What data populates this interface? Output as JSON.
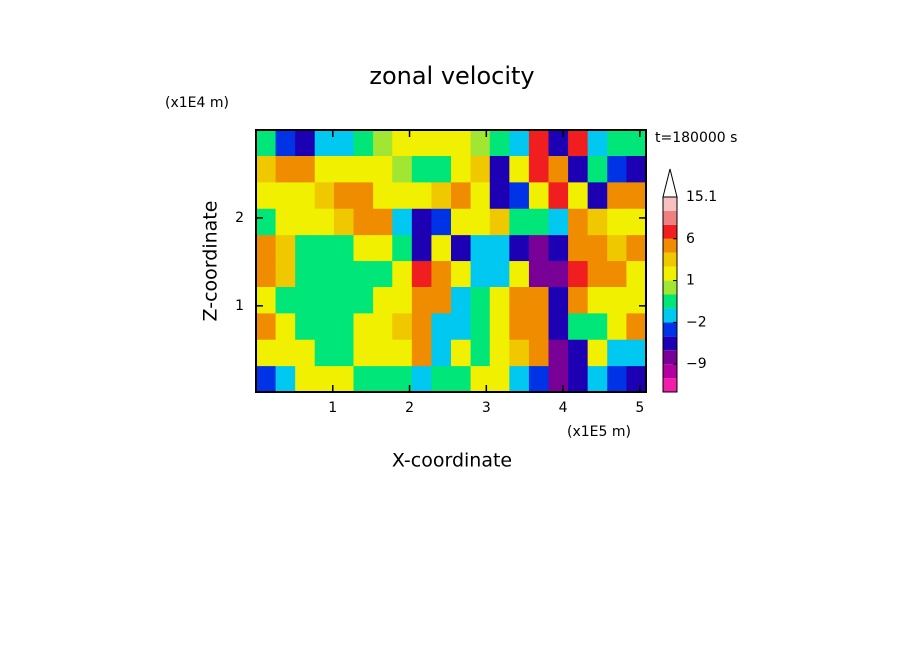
{
  "chart_data": {
    "type": "contour",
    "title": "zonal velocity",
    "x_label": "X-coordinate",
    "y_label": "Z-coordinate",
    "x_unit": "(x1E5 m)",
    "y_unit": "(x1E4 m)",
    "annotation": "t=180000 s",
    "xlim": [
      0,
      5.08
    ],
    "ylim": [
      0.02,
      3.0
    ],
    "xticks": [
      1,
      2,
      3,
      4,
      5
    ],
    "yticks": [
      1,
      2
    ],
    "x": [
      0.13,
      0.38,
      0.64,
      0.89,
      1.14,
      1.4,
      1.65,
      1.9,
      2.16,
      2.41,
      2.67,
      2.92,
      3.17,
      3.43,
      3.68,
      3.94,
      4.19,
      4.45,
      4.7,
      4.95
    ],
    "y": [
      0.17,
      0.47,
      0.77,
      1.07,
      1.37,
      1.66,
      1.96,
      2.26,
      2.56,
      2.86
    ],
    "z": [
      [
        -2.5,
        -1.5,
        1.5,
        1.5,
        1.5,
        -0.5,
        -0.5,
        -0.5,
        -1.5,
        -0.5,
        -0.5,
        1.5,
        1.5,
        -1.5,
        -2.5,
        -7.5,
        -4.5,
        -1.5,
        -2.5,
        -4.5
      ],
      [
        1.5,
        1.5,
        1.5,
        -0.5,
        -0.5,
        1.5,
        1.5,
        1.5,
        4.5,
        -1.5,
        1.5,
        -0.5,
        1.5,
        2.5,
        4.5,
        -7.5,
        -4.5,
        1.5,
        -1.5,
        -1.5
      ],
      [
        4.5,
        1.5,
        -0.5,
        -0.5,
        -0.5,
        1.5,
        1.5,
        2.5,
        4.5,
        -1.5,
        -1.5,
        -0.5,
        1.5,
        4.5,
        4.5,
        -4.5,
        -0.5,
        -0.5,
        1.5,
        4.5
      ],
      [
        1.5,
        -0.5,
        -0.5,
        -0.5,
        -0.5,
        -0.5,
        1.5,
        1.5,
        4.5,
        4.5,
        -1.5,
        -0.5,
        1.5,
        4.5,
        4.5,
        -4.5,
        4.5,
        1.5,
        1.5,
        1.5
      ],
      [
        4.5,
        2.5,
        -0.5,
        -0.5,
        -0.5,
        -0.5,
        -0.5,
        1.5,
        7,
        4.5,
        1.5,
        -1.5,
        -1.5,
        1.5,
        -7.5,
        -7.5,
        7,
        4.5,
        4.5,
        1.5
      ],
      [
        4.5,
        2.5,
        -0.5,
        -0.5,
        -0.5,
        1.5,
        1.5,
        -0.5,
        -4.5,
        1.5,
        -4.5,
        -1.5,
        -1.5,
        -4.5,
        -7.5,
        -4.5,
        4.5,
        4.5,
        2.5,
        4.5
      ],
      [
        -0.5,
        1.5,
        1.5,
        1.5,
        2.5,
        4.5,
        4.5,
        -1.5,
        -4.5,
        -2.5,
        1.5,
        1.5,
        2.5,
        -0.5,
        -0.5,
        -1.5,
        4.5,
        2.5,
        1.5,
        1.5
      ],
      [
        1.5,
        1.5,
        1.5,
        2.5,
        4.5,
        4.5,
        1.5,
        1.5,
        1.5,
        2.5,
        4.5,
        1.5,
        -4.5,
        -2.5,
        1.5,
        7,
        1.5,
        -4.5,
        4.5,
        4.5
      ],
      [
        2.5,
        4.5,
        4.5,
        1.5,
        1.5,
        1.5,
        1.5,
        0.5,
        -0.5,
        -0.5,
        1.5,
        2.5,
        -4.5,
        1.5,
        7,
        4.5,
        -4.5,
        -0.5,
        -2.5,
        -4.5
      ],
      [
        -0.5,
        -2.5,
        -4.5,
        -1.5,
        -1.5,
        -0.5,
        0.5,
        1.5,
        1.5,
        1.5,
        1.5,
        0.5,
        -0.5,
        -1.5,
        7,
        -4.5,
        7,
        -1.5,
        -0.5,
        -0.5
      ]
    ],
    "levels": [
      -15,
      -12,
      -9,
      -6,
      -3,
      -2,
      -1,
      0,
      1,
      2,
      3,
      6,
      9,
      12,
      15.1
    ],
    "colors": [
      "#f01eaa",
      "#b400a0",
      "#780096",
      "#1e00b4",
      "#0032e6",
      "#00c8f0",
      "#00e678",
      "#a0e632",
      "#f0f000",
      "#f0c800",
      "#f08c00",
      "#f01e1e",
      "#f08080",
      "#f8c0c0"
    ],
    "colorbar_ticks": [
      {
        "value": 15.1,
        "label": "15.1"
      },
      6,
      1,
      {
        "value": -2,
        "label": "−2"
      },
      {
        "value": -9,
        "label": "−9"
      }
    ]
  }
}
